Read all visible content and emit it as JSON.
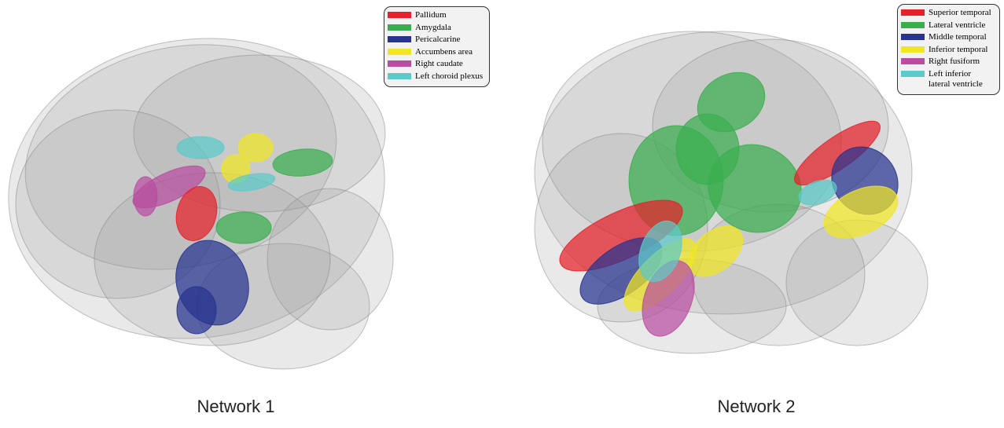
{
  "panels": [
    {
      "caption": "Network 1",
      "legend": [
        {
          "label": "Pallidum",
          "color": "#e8202a"
        },
        {
          "label": "Amygdala",
          "color": "#3aae4f"
        },
        {
          "label": "Pericalcarine",
          "color": "#27338f"
        },
        {
          "label": "Accumbens area",
          "color": "#f0e622"
        },
        {
          "label": "Right caudate",
          "color": "#b94ea0"
        },
        {
          "label": "Left choroid plexus",
          "color": "#5ccaca"
        }
      ]
    },
    {
      "caption": "Network 2",
      "legend": [
        {
          "label": "Superior temporal",
          "color": "#e8202a"
        },
        {
          "label": "Lateral ventricle",
          "color": "#3aae4f"
        },
        {
          "label": "Middle temporal",
          "color": "#27338f"
        },
        {
          "label": "Inferior temporal",
          "color": "#f0e622"
        },
        {
          "label": "Right fusiform",
          "color": "#b94ea0"
        },
        {
          "label": "Left inferior lateral ventricle",
          "color": "#5ccaca"
        }
      ]
    }
  ]
}
